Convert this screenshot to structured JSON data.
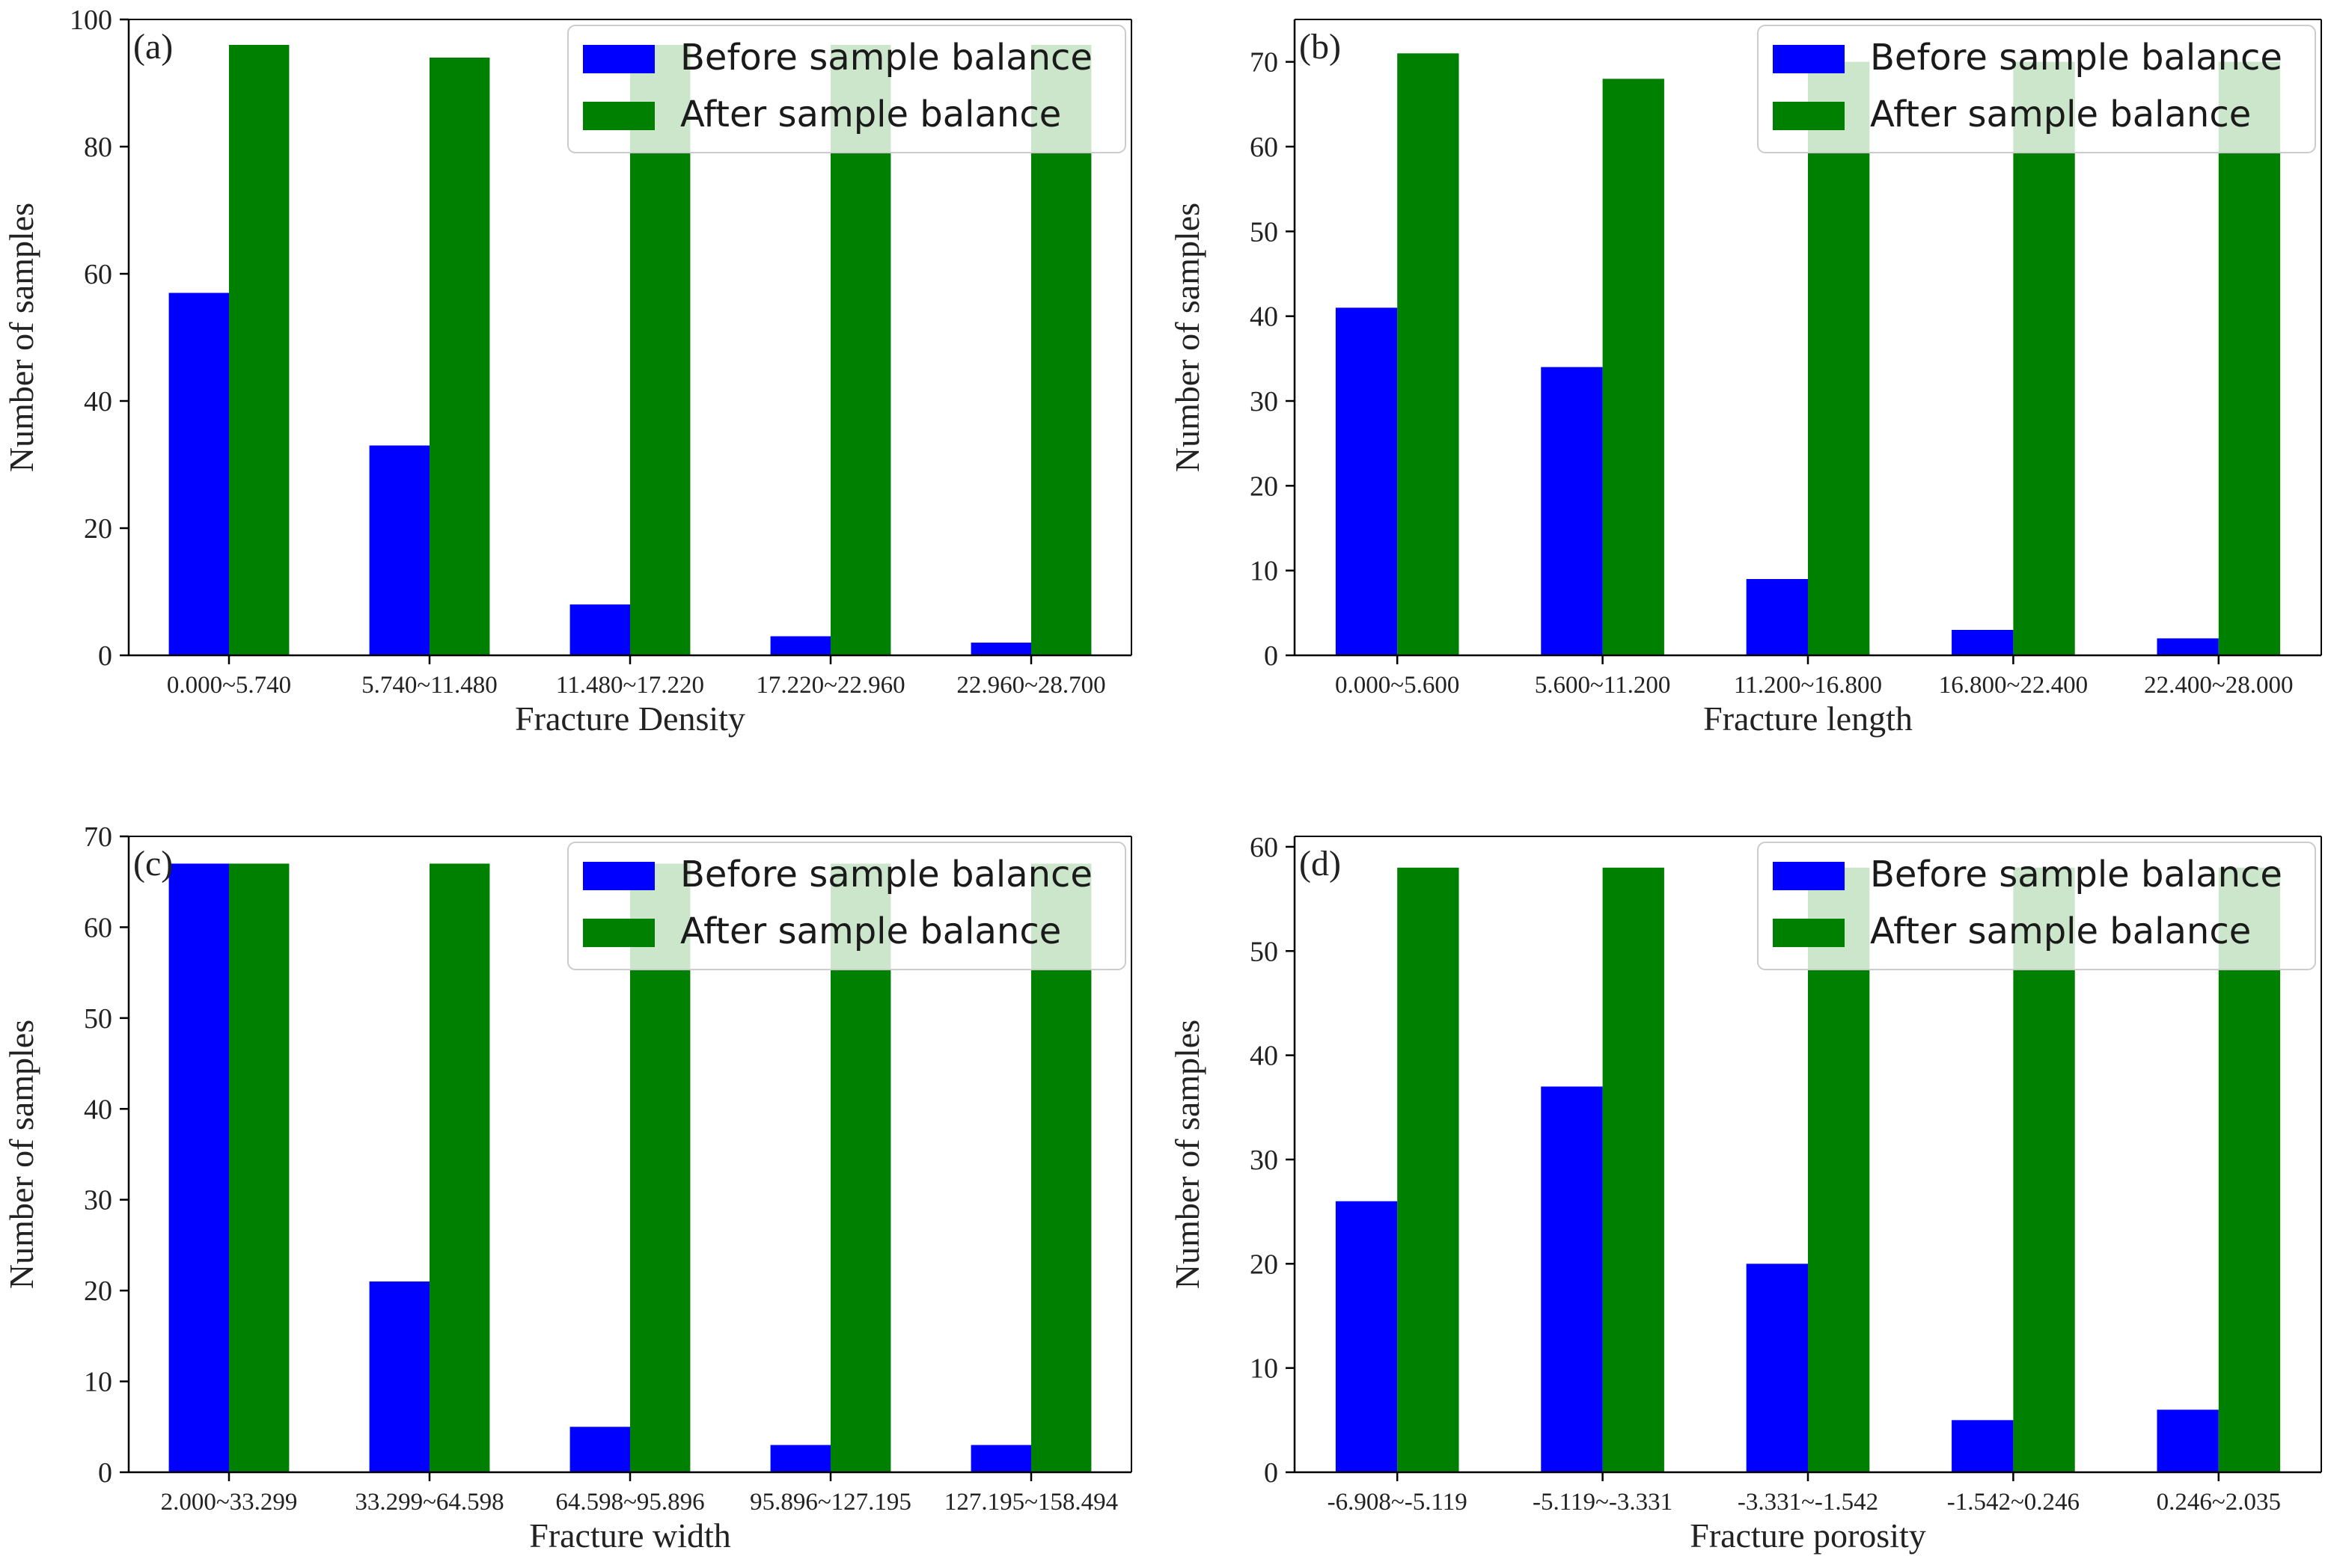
{
  "colors": {
    "before": "#0000ff",
    "after": "#008000",
    "axis": "#000000",
    "background": "#ffffff"
  },
  "legend": {
    "before_label": "Before sample balance",
    "after_label": "After sample balance"
  },
  "chart_data": [
    {
      "type": "bar",
      "panel_label": "(a)",
      "title": "",
      "xlabel": "Fracture Density",
      "ylabel": "Number of samples",
      "ylim": [
        0,
        100
      ],
      "yticks": [
        0,
        20,
        40,
        60,
        80,
        100
      ],
      "categories": [
        "0.000~5.740",
        "5.740~11.480",
        "11.480~17.220",
        "17.220~22.960",
        "22.960~28.700"
      ],
      "series": [
        {
          "name": "Before sample balance",
          "values": [
            57,
            33,
            8,
            3,
            2
          ]
        },
        {
          "name": "After sample balance",
          "values": [
            96,
            94,
            96,
            96,
            96
          ]
        }
      ],
      "legend_position": "top-right",
      "grid": false
    },
    {
      "type": "bar",
      "panel_label": "(b)",
      "title": "",
      "xlabel": "Fracture length",
      "ylabel": "Number of samples",
      "ylim": [
        0,
        75
      ],
      "yticks": [
        0,
        10,
        20,
        30,
        40,
        50,
        60,
        70
      ],
      "categories": [
        "0.000~5.600",
        "5.600~11.200",
        "11.200~16.800",
        "16.800~22.400",
        "22.400~28.000"
      ],
      "series": [
        {
          "name": "Before sample balance",
          "values": [
            41,
            34,
            9,
            3,
            2
          ]
        },
        {
          "name": "After sample balance",
          "values": [
            71,
            68,
            70,
            70,
            70
          ]
        }
      ],
      "legend_position": "top-right",
      "grid": false
    },
    {
      "type": "bar",
      "panel_label": "(c)",
      "title": "",
      "xlabel": "Fracture width",
      "ylabel": "Number of samples",
      "ylim": [
        0,
        70
      ],
      "yticks": [
        0,
        10,
        20,
        30,
        40,
        50,
        60,
        70
      ],
      "categories": [
        "2.000~33.299",
        "33.299~64.598",
        "64.598~95.896",
        "95.896~127.195",
        "127.195~158.494"
      ],
      "series": [
        {
          "name": "Before sample balance",
          "values": [
            67,
            21,
            5,
            3,
            3
          ]
        },
        {
          "name": "After sample balance",
          "values": [
            67,
            67,
            67,
            67,
            67
          ]
        }
      ],
      "legend_position": "top-right",
      "grid": false
    },
    {
      "type": "bar",
      "panel_label": "(d)",
      "title": "",
      "xlabel": "Fracture porosity",
      "ylabel": "Number of samples",
      "ylim": [
        0,
        61
      ],
      "yticks": [
        0,
        10,
        20,
        30,
        40,
        50,
        60
      ],
      "categories": [
        "-6.908~-5.119",
        "-5.119~-3.331",
        "-3.331~-1.542",
        "-1.542~0.246",
        "0.246~2.035"
      ],
      "series": [
        {
          "name": "Before sample balance",
          "values": [
            26,
            37,
            20,
            5,
            6
          ]
        },
        {
          "name": "After sample balance",
          "values": [
            58,
            58,
            58,
            58,
            58
          ]
        }
      ],
      "legend_position": "top-right",
      "grid": false
    }
  ]
}
